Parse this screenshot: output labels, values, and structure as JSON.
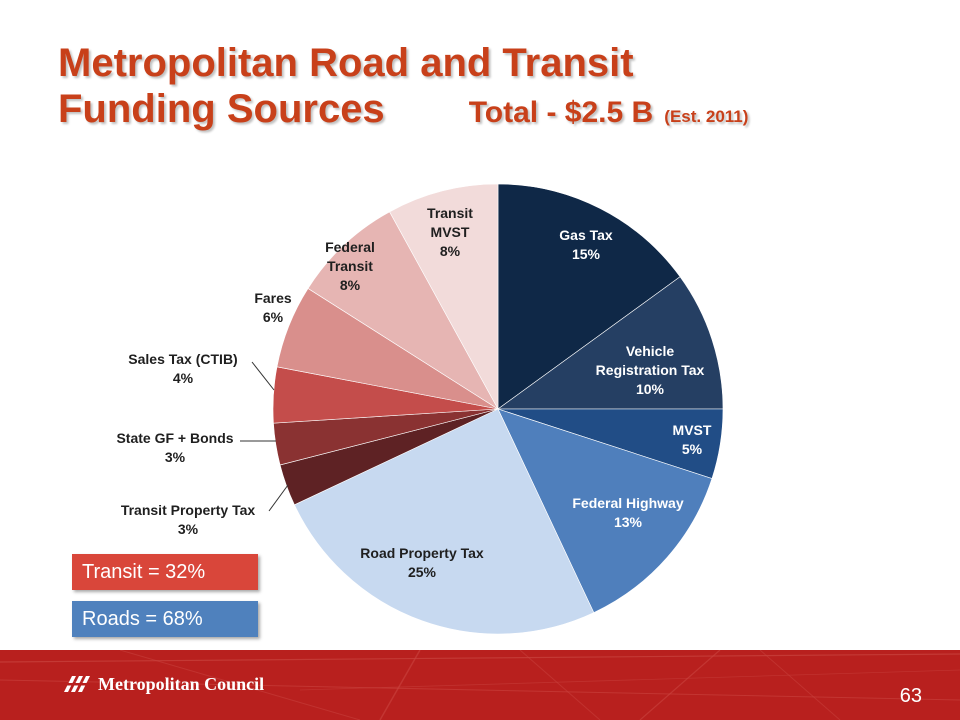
{
  "title": {
    "line1": "Metropolitan Road and Transit",
    "line2": "Funding Sources",
    "total": "Total - $2.5 B",
    "est": "(Est. 2011)"
  },
  "chart_data": {
    "type": "pie",
    "start_angle_deg": 0,
    "direction": "clockwise",
    "slices": [
      {
        "name": "Gas Tax",
        "label_line1": "Gas Tax",
        "label_line2": "",
        "pct_label": "15%",
        "value": 15,
        "color": "#0f2847"
      },
      {
        "name": "Vehicle Registration Tax",
        "label_line1": "Vehicle",
        "label_line2": "Registration Tax",
        "pct_label": "10%",
        "value": 10,
        "color": "#253f63"
      },
      {
        "name": "MVST",
        "label_line1": "MVST",
        "label_line2": "",
        "pct_label": "5%",
        "value": 5,
        "color": "#214d86"
      },
      {
        "name": "Federal Highway",
        "label_line1": "Federal Highway",
        "label_line2": "",
        "pct_label": "13%",
        "value": 13,
        "color": "#4f7fbc"
      },
      {
        "name": "Road Property Tax",
        "label_line1": "Road Property Tax",
        "label_line2": "",
        "pct_label": "25%",
        "value": 25,
        "color": "#c7d9f0"
      },
      {
        "name": "Transit Property Tax",
        "label_line1": "Transit Property Tax",
        "label_line2": "",
        "pct_label": "3%",
        "value": 3,
        "color": "#5e2224"
      },
      {
        "name": "State GF + Bonds",
        "label_line1": "State GF + Bonds",
        "label_line2": "",
        "pct_label": "3%",
        "value": 3,
        "color": "#8a3232"
      },
      {
        "name": "Sales Tax (CTIB)",
        "label_line1": "Sales Tax (CTIB)",
        "label_line2": "",
        "pct_label": "4%",
        "value": 4,
        "color": "#c44d4b"
      },
      {
        "name": "Fares",
        "label_line1": "Fares",
        "label_line2": "",
        "pct_label": "6%",
        "value": 6,
        "color": "#d98f8c"
      },
      {
        "name": "Federal Transit",
        "label_line1": "Federal",
        "label_line2": "Transit",
        "pct_label": "8%",
        "value": 8,
        "color": "#e6b5b3"
      },
      {
        "name": "Transit MVST",
        "label_line1": "Transit",
        "label_line2": "MVST",
        "pct_label": "8%",
        "value": 8,
        "color": "#f2dbda"
      }
    ]
  },
  "legend": {
    "transit": "Transit = 32%",
    "roads": "Roads = 68%",
    "transit_color": "#d9463a",
    "roads_color": "#4f81bd"
  },
  "footer": {
    "org": "Metropolitan Council",
    "page": "63",
    "bar_color": "#b8201e"
  }
}
